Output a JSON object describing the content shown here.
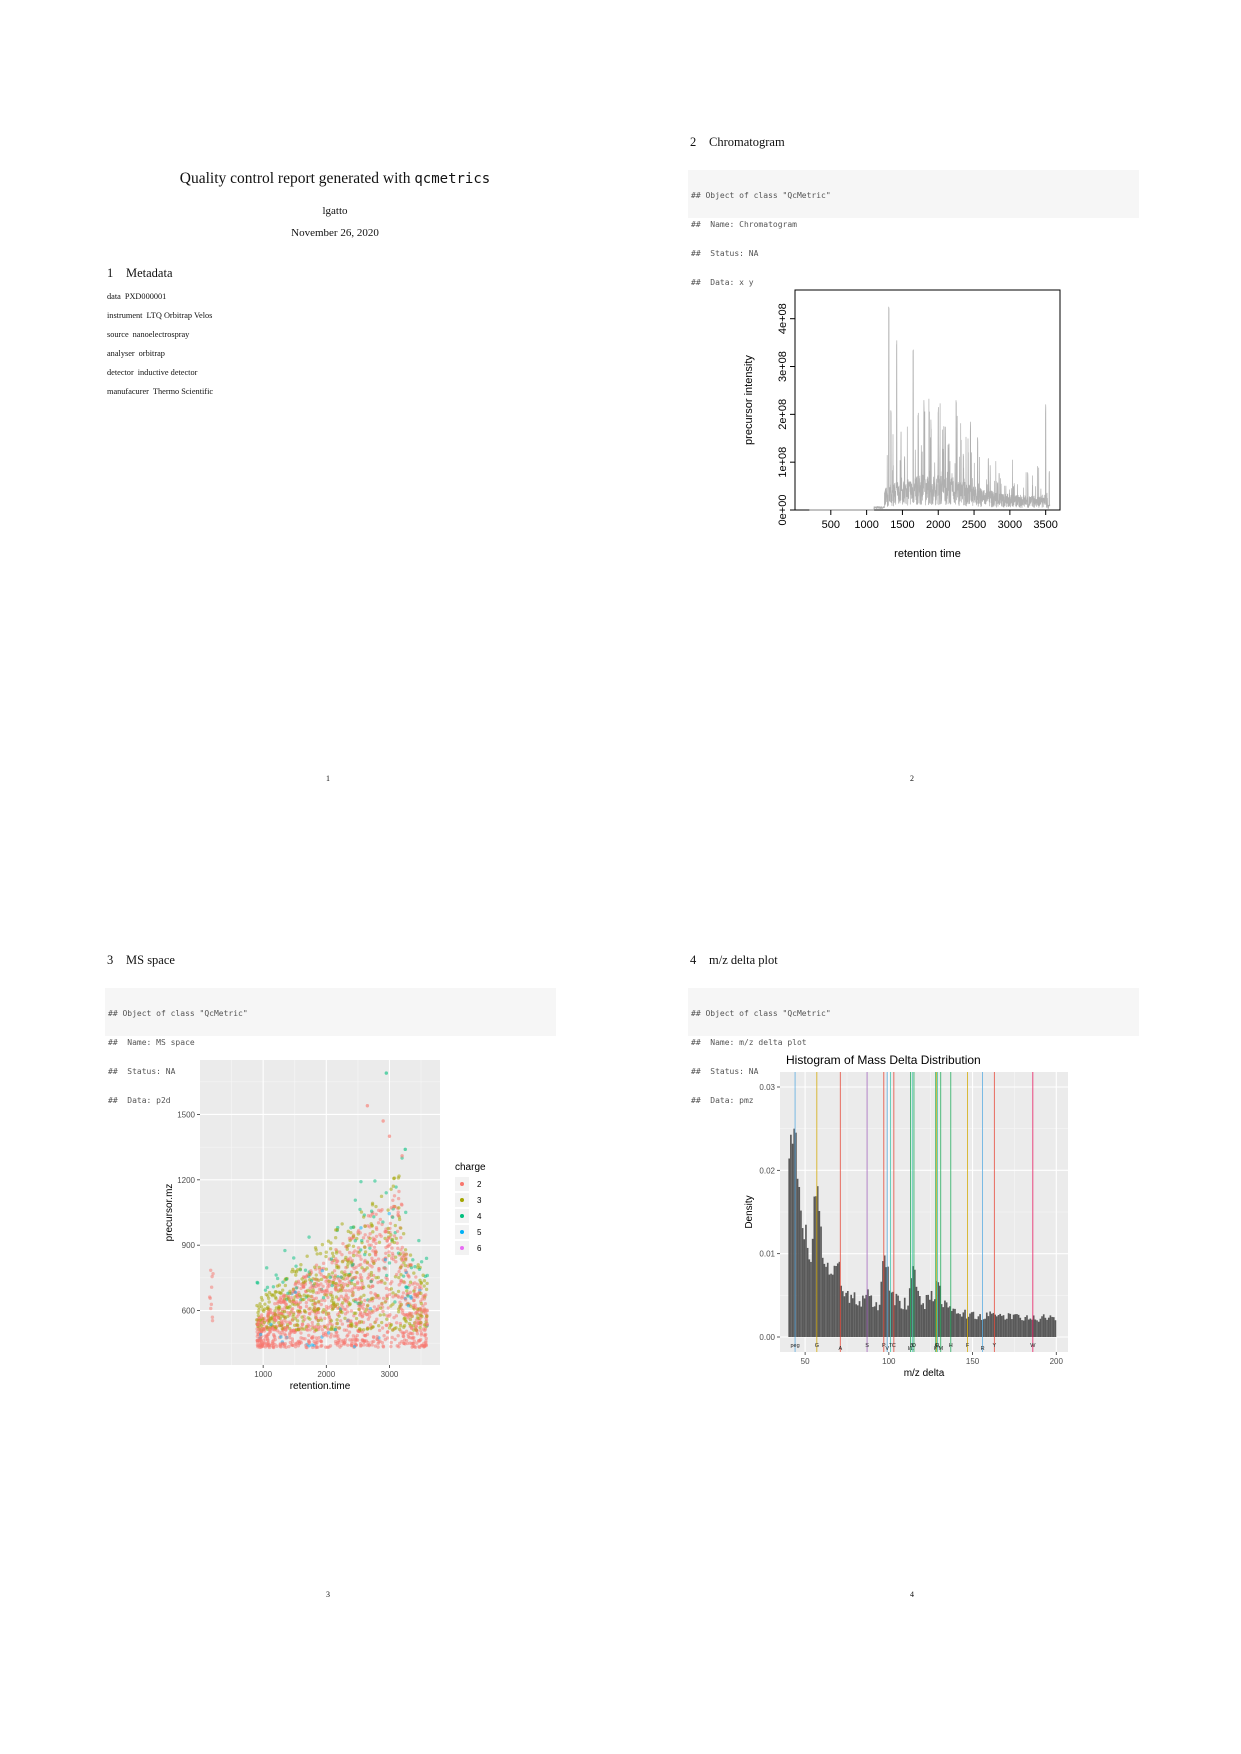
{
  "page1": {
    "title_prefix": "Quality control report generated with",
    "title_code": "qcmetrics",
    "author": "lgatto",
    "date": "November 26, 2020",
    "section": {
      "number": "1",
      "title": "Metadata"
    },
    "metadata": [
      {
        "key": "data",
        "value": "PXD000001"
      },
      {
        "key": "instrument",
        "value": "LTQ Orbitrap Velos"
      },
      {
        "key": "source",
        "value": "nanoelectrospray"
      },
      {
        "key": "analyser",
        "value": "orbitrap"
      },
      {
        "key": "detector",
        "value": "inductive detector"
      },
      {
        "key": "manufacurer",
        "value": "Thermo Scientific"
      }
    ],
    "page_number": "1"
  },
  "page2": {
    "section": {
      "number": "2",
      "title": "Chromatogram"
    },
    "code_lines": [
      "## Object of class \"QcMetric\"",
      "##  Name: Chromatogram",
      "##  Status: NA",
      "##  Data: x y"
    ],
    "page_number": "2"
  },
  "page3": {
    "section": {
      "number": "3",
      "title": "MS space"
    },
    "code_lines": [
      "## Object of class \"QcMetric\"",
      "##  Name: MS space",
      "##  Status: NA",
      "##  Data: p2d"
    ],
    "page_number": "3"
  },
  "page4": {
    "section": {
      "number": "4",
      "title": "m/z delta plot"
    },
    "code_lines": [
      "## Object of class \"QcMetric\"",
      "##  Name: m/z delta plot",
      "##  Status: NA",
      "##  Data: pmz"
    ],
    "page_number": "4"
  },
  "chart_data": [
    {
      "type": "line",
      "title": "",
      "xlabel": "retention time",
      "ylabel": "precursor intensity",
      "xlim": [
        0,
        3700
      ],
      "ylim": [
        0,
        460000000
      ],
      "xticks": [
        "500",
        "1000",
        "1500",
        "2000",
        "2500",
        "3000",
        "3500"
      ],
      "yticks": [
        "0e+00",
        "1e+08",
        "2e+08",
        "3e+08",
        "4e+08"
      ],
      "grid": false,
      "line_color": "#b0b0b0",
      "peaks": [
        [
          1310,
          430000000
        ],
        [
          1340,
          220000000
        ],
        [
          1420,
          370000000
        ],
        [
          1480,
          170000000
        ],
        [
          1530,
          120000000
        ],
        [
          1650,
          370000000
        ],
        [
          1720,
          210000000
        ],
        [
          1800,
          230000000
        ],
        [
          1900,
          190000000
        ],
        [
          2000,
          220000000
        ],
        [
          2080,
          180000000
        ],
        [
          2150,
          140000000
        ],
        [
          2250,
          230000000
        ],
        [
          2350,
          130000000
        ],
        [
          2450,
          190000000
        ],
        [
          2550,
          160000000
        ],
        [
          2700,
          110000000
        ],
        [
          2850,
          80000000
        ],
        [
          3050,
          50000000
        ],
        [
          3250,
          80000000
        ],
        [
          3500,
          230000000
        ],
        [
          3550,
          170000000
        ]
      ]
    },
    {
      "type": "scatter",
      "title": "",
      "xlabel": "retention.time",
      "ylabel": "precursor.mz",
      "xlim": [
        0,
        3800
      ],
      "ylim": [
        350,
        1750
      ],
      "xticks": [
        "1000",
        "2000",
        "3000"
      ],
      "yticks": [
        "600",
        "900",
        "1200",
        "1500"
      ],
      "legend_title": "charge",
      "legend_position": "right",
      "series": [
        {
          "name": "2",
          "color": "#F8766D"
        },
        {
          "name": "3",
          "color": "#A3A500"
        },
        {
          "name": "4",
          "color": "#00BF7D"
        },
        {
          "name": "5",
          "color": "#00B0F6"
        },
        {
          "name": "6",
          "color": "#E76BF3"
        }
      ],
      "outliers": [
        [
          2950,
          1690
        ],
        [
          3250,
          1340
        ],
        [
          2650,
          1540
        ],
        [
          2900,
          1470
        ],
        [
          3000,
          1400
        ],
        [
          3200,
          1310
        ]
      ]
    },
    {
      "type": "bar",
      "title": "Histogram of Mass Delta Distribution",
      "xlabel": "m/z delta",
      "ylabel": "Density",
      "xlim": [
        35,
        207
      ],
      "ylim": [
        -0.0018,
        0.0318
      ],
      "xticks": [
        "50",
        "100",
        "150",
        "200"
      ],
      "yticks": [
        "0.00",
        "0.01",
        "0.02",
        "0.03"
      ],
      "bar_color": "#595959",
      "density_profile": [
        [
          40,
          0.02
        ],
        [
          42,
          0.024
        ],
        [
          43,
          0.026
        ],
        [
          44,
          0.025
        ],
        [
          46,
          0.022
        ],
        [
          48,
          0.016
        ],
        [
          50,
          0.012
        ],
        [
          52,
          0.01
        ],
        [
          54,
          0.01
        ],
        [
          56,
          0.021
        ],
        [
          57,
          0.018
        ],
        [
          59,
          0.012
        ],
        [
          62,
          0.009
        ],
        [
          66,
          0.007
        ],
        [
          70,
          0.0085
        ],
        [
          72,
          0.006
        ],
        [
          76,
          0.005
        ],
        [
          80,
          0.0045
        ],
        [
          84,
          0.004
        ],
        [
          87,
          0.0055
        ],
        [
          90,
          0.004
        ],
        [
          94,
          0.0035
        ],
        [
          97,
          0.011
        ],
        [
          99,
          0.009
        ],
        [
          101,
          0.006
        ],
        [
          104,
          0.0045
        ],
        [
          108,
          0.004
        ],
        [
          112,
          0.004
        ],
        [
          114,
          0.009
        ],
        [
          116,
          0.006
        ],
        [
          120,
          0.004
        ],
        [
          125,
          0.0045
        ],
        [
          129,
          0.006
        ],
        [
          132,
          0.0045
        ],
        [
          137,
          0.003
        ],
        [
          145,
          0.0028
        ],
        [
          155,
          0.0025
        ],
        [
          165,
          0.0026
        ],
        [
          175,
          0.0024
        ],
        [
          185,
          0.0022
        ],
        [
          195,
          0.0023
        ],
        [
          200,
          0.002
        ]
      ],
      "markers": [
        {
          "label": "peg",
          "x": 44,
          "color": "#5dade2"
        },
        {
          "label": "G",
          "x": 57,
          "color": "#d4ac0d"
        },
        {
          "label": "A",
          "x": 71,
          "color": "#e74c3c"
        },
        {
          "label": "S",
          "x": 87,
          "color": "#a569bd"
        },
        {
          "label": "P",
          "x": 97,
          "color": "#e74c3c"
        },
        {
          "label": "V",
          "x": 99,
          "color": "#5dade2"
        },
        {
          "label": "T",
          "x": 101,
          "color": "#48c9b0"
        },
        {
          "label": "C",
          "x": 103,
          "color": "#e74c3c"
        },
        {
          "label": "I/L",
          "x": 113,
          "color": "#27ae60"
        },
        {
          "label": "N",
          "x": 114,
          "color": "#48c9b0"
        },
        {
          "label": "D",
          "x": 115,
          "color": "#27ae60"
        },
        {
          "label": "K",
          "x": 128,
          "color": "#27ae60"
        },
        {
          "label": "Q",
          "x": 128.6,
          "color": "#d4ac0d"
        },
        {
          "label": "E",
          "x": 129,
          "color": "#48c9b0"
        },
        {
          "label": "M",
          "x": 131,
          "color": "#27ae60"
        },
        {
          "label": "H",
          "x": 137,
          "color": "#27ae60"
        },
        {
          "label": "F",
          "x": 147,
          "color": "#d4ac0d"
        },
        {
          "label": "R",
          "x": 156,
          "color": "#5dade2"
        },
        {
          "label": "Y",
          "x": 163,
          "color": "#e74c3c"
        },
        {
          "label": "W",
          "x": 186,
          "color": "#e91e63"
        }
      ]
    }
  ]
}
